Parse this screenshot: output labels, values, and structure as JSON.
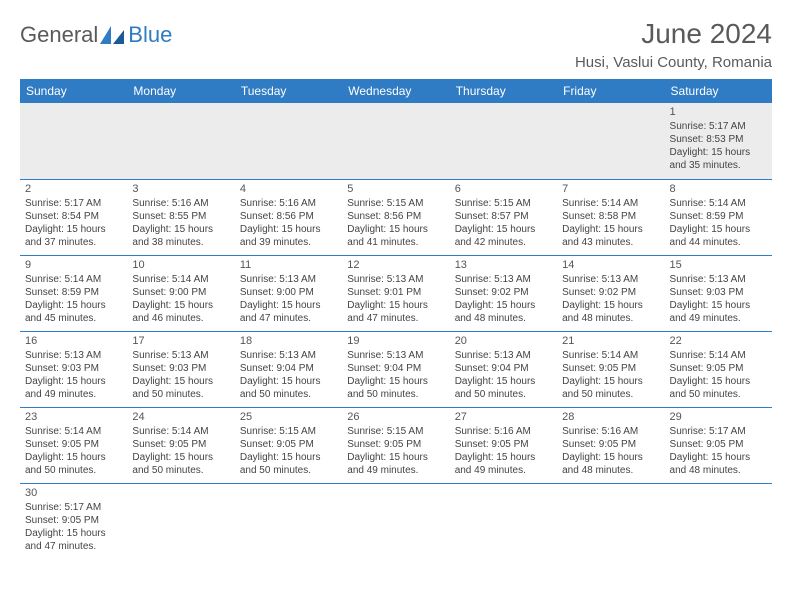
{
  "logo": {
    "text1": "General",
    "text2": "Blue"
  },
  "title": "June 2024",
  "location": "Husi, Vaslui County, Romania",
  "colors": {
    "header_bg": "#2f7bc4",
    "header_text": "#ffffff",
    "row_divider": "#2f7bc4",
    "empty_bg": "#ececec",
    "logo_gray": "#5a5a5a",
    "logo_blue": "#2f7bc4"
  },
  "weekdays": [
    "Sunday",
    "Monday",
    "Tuesday",
    "Wednesday",
    "Thursday",
    "Friday",
    "Saturday"
  ],
  "weeks": [
    [
      null,
      null,
      null,
      null,
      null,
      null,
      {
        "n": "1",
        "sr": "Sunrise: 5:17 AM",
        "ss": "Sunset: 8:53 PM",
        "d1": "Daylight: 15 hours",
        "d2": "and 35 minutes."
      }
    ],
    [
      {
        "n": "2",
        "sr": "Sunrise: 5:17 AM",
        "ss": "Sunset: 8:54 PM",
        "d1": "Daylight: 15 hours",
        "d2": "and 37 minutes."
      },
      {
        "n": "3",
        "sr": "Sunrise: 5:16 AM",
        "ss": "Sunset: 8:55 PM",
        "d1": "Daylight: 15 hours",
        "d2": "and 38 minutes."
      },
      {
        "n": "4",
        "sr": "Sunrise: 5:16 AM",
        "ss": "Sunset: 8:56 PM",
        "d1": "Daylight: 15 hours",
        "d2": "and 39 minutes."
      },
      {
        "n": "5",
        "sr": "Sunrise: 5:15 AM",
        "ss": "Sunset: 8:56 PM",
        "d1": "Daylight: 15 hours",
        "d2": "and 41 minutes."
      },
      {
        "n": "6",
        "sr": "Sunrise: 5:15 AM",
        "ss": "Sunset: 8:57 PM",
        "d1": "Daylight: 15 hours",
        "d2": "and 42 minutes."
      },
      {
        "n": "7",
        "sr": "Sunrise: 5:14 AM",
        "ss": "Sunset: 8:58 PM",
        "d1": "Daylight: 15 hours",
        "d2": "and 43 minutes."
      },
      {
        "n": "8",
        "sr": "Sunrise: 5:14 AM",
        "ss": "Sunset: 8:59 PM",
        "d1": "Daylight: 15 hours",
        "d2": "and 44 minutes."
      }
    ],
    [
      {
        "n": "9",
        "sr": "Sunrise: 5:14 AM",
        "ss": "Sunset: 8:59 PM",
        "d1": "Daylight: 15 hours",
        "d2": "and 45 minutes."
      },
      {
        "n": "10",
        "sr": "Sunrise: 5:14 AM",
        "ss": "Sunset: 9:00 PM",
        "d1": "Daylight: 15 hours",
        "d2": "and 46 minutes."
      },
      {
        "n": "11",
        "sr": "Sunrise: 5:13 AM",
        "ss": "Sunset: 9:00 PM",
        "d1": "Daylight: 15 hours",
        "d2": "and 47 minutes."
      },
      {
        "n": "12",
        "sr": "Sunrise: 5:13 AM",
        "ss": "Sunset: 9:01 PM",
        "d1": "Daylight: 15 hours",
        "d2": "and 47 minutes."
      },
      {
        "n": "13",
        "sr": "Sunrise: 5:13 AM",
        "ss": "Sunset: 9:02 PM",
        "d1": "Daylight: 15 hours",
        "d2": "and 48 minutes."
      },
      {
        "n": "14",
        "sr": "Sunrise: 5:13 AM",
        "ss": "Sunset: 9:02 PM",
        "d1": "Daylight: 15 hours",
        "d2": "and 48 minutes."
      },
      {
        "n": "15",
        "sr": "Sunrise: 5:13 AM",
        "ss": "Sunset: 9:03 PM",
        "d1": "Daylight: 15 hours",
        "d2": "and 49 minutes."
      }
    ],
    [
      {
        "n": "16",
        "sr": "Sunrise: 5:13 AM",
        "ss": "Sunset: 9:03 PM",
        "d1": "Daylight: 15 hours",
        "d2": "and 49 minutes."
      },
      {
        "n": "17",
        "sr": "Sunrise: 5:13 AM",
        "ss": "Sunset: 9:03 PM",
        "d1": "Daylight: 15 hours",
        "d2": "and 50 minutes."
      },
      {
        "n": "18",
        "sr": "Sunrise: 5:13 AM",
        "ss": "Sunset: 9:04 PM",
        "d1": "Daylight: 15 hours",
        "d2": "and 50 minutes."
      },
      {
        "n": "19",
        "sr": "Sunrise: 5:13 AM",
        "ss": "Sunset: 9:04 PM",
        "d1": "Daylight: 15 hours",
        "d2": "and 50 minutes."
      },
      {
        "n": "20",
        "sr": "Sunrise: 5:13 AM",
        "ss": "Sunset: 9:04 PM",
        "d1": "Daylight: 15 hours",
        "d2": "and 50 minutes."
      },
      {
        "n": "21",
        "sr": "Sunrise: 5:14 AM",
        "ss": "Sunset: 9:05 PM",
        "d1": "Daylight: 15 hours",
        "d2": "and 50 minutes."
      },
      {
        "n": "22",
        "sr": "Sunrise: 5:14 AM",
        "ss": "Sunset: 9:05 PM",
        "d1": "Daylight: 15 hours",
        "d2": "and 50 minutes."
      }
    ],
    [
      {
        "n": "23",
        "sr": "Sunrise: 5:14 AM",
        "ss": "Sunset: 9:05 PM",
        "d1": "Daylight: 15 hours",
        "d2": "and 50 minutes."
      },
      {
        "n": "24",
        "sr": "Sunrise: 5:14 AM",
        "ss": "Sunset: 9:05 PM",
        "d1": "Daylight: 15 hours",
        "d2": "and 50 minutes."
      },
      {
        "n": "25",
        "sr": "Sunrise: 5:15 AM",
        "ss": "Sunset: 9:05 PM",
        "d1": "Daylight: 15 hours",
        "d2": "and 50 minutes."
      },
      {
        "n": "26",
        "sr": "Sunrise: 5:15 AM",
        "ss": "Sunset: 9:05 PM",
        "d1": "Daylight: 15 hours",
        "d2": "and 49 minutes."
      },
      {
        "n": "27",
        "sr": "Sunrise: 5:16 AM",
        "ss": "Sunset: 9:05 PM",
        "d1": "Daylight: 15 hours",
        "d2": "and 49 minutes."
      },
      {
        "n": "28",
        "sr": "Sunrise: 5:16 AM",
        "ss": "Sunset: 9:05 PM",
        "d1": "Daylight: 15 hours",
        "d2": "and 48 minutes."
      },
      {
        "n": "29",
        "sr": "Sunrise: 5:17 AM",
        "ss": "Sunset: 9:05 PM",
        "d1": "Daylight: 15 hours",
        "d2": "and 48 minutes."
      }
    ],
    [
      {
        "n": "30",
        "sr": "Sunrise: 5:17 AM",
        "ss": "Sunset: 9:05 PM",
        "d1": "Daylight: 15 hours",
        "d2": "and 47 minutes."
      },
      null,
      null,
      null,
      null,
      null,
      null
    ]
  ]
}
